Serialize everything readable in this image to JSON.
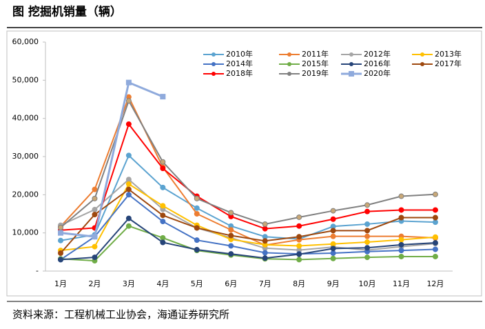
{
  "chart_data": {
    "type": "line",
    "title": "图   挖掘机销量（辆）",
    "source": "资料来源：工程机械工业协会，海通证券研究所",
    "categories": [
      "1月",
      "2月",
      "3月",
      "4月",
      "5月",
      "6月",
      "7月",
      "8月",
      "9月",
      "10月",
      "11月",
      "12月"
    ],
    "ylim": [
      0,
      60000
    ],
    "yticks": [
      {
        "value": 0,
        "label": "-"
      },
      {
        "value": 10000,
        "label": "10,000"
      },
      {
        "value": 20000,
        "label": "20,000"
      },
      {
        "value": 30000,
        "label": "30,000"
      },
      {
        "value": 40000,
        "label": "40,000"
      },
      {
        "value": 50000,
        "label": "50,000"
      },
      {
        "value": 60000,
        "label": "60,000"
      }
    ],
    "grid": false,
    "series": [
      {
        "name": "2010年",
        "color": "#5ba3d0",
        "values": [
          8000,
          9500,
          30300,
          21900,
          16500,
          11800,
          9000,
          8400,
          11700,
          12300,
          13100,
          12800
        ]
      },
      {
        "name": "2011年",
        "color": "#ed7d31",
        "values": [
          11700,
          21400,
          45600,
          27200,
          15000,
          10800,
          6800,
          8200,
          9100,
          9100,
          9100,
          8700
        ]
      },
      {
        "name": "2012年",
        "color": "#a5a5a5",
        "values": [
          12000,
          16100,
          24000,
          16200,
          11300,
          8700,
          6000,
          5500,
          6300,
          5500,
          6400,
          7200
        ]
      },
      {
        "name": "2013年",
        "color": "#ffc000",
        "values": [
          5400,
          6400,
          22800,
          17100,
          12000,
          8300,
          6900,
          6600,
          7100,
          7600,
          8200,
          8900
        ]
      },
      {
        "name": "2014年",
        "color": "#4472c4",
        "values": [
          3000,
          9000,
          20000,
          13000,
          8100,
          6600,
          4800,
          4500,
          4700,
          5100,
          5400,
          5700
        ]
      },
      {
        "name": "2015年",
        "color": "#70ad47",
        "values": [
          3200,
          2700,
          11800,
          8700,
          5400,
          4200,
          3200,
          3000,
          3300,
          3600,
          3800,
          3800
        ]
      },
      {
        "name": "2016年",
        "color": "#264478",
        "values": [
          3000,
          3600,
          13800,
          7500,
          5600,
          4500,
          3400,
          4400,
          5900,
          6100,
          6900,
          7400
        ]
      },
      {
        "name": "2017年",
        "color": "#9e480e",
        "values": [
          4700,
          14800,
          21400,
          14600,
          11300,
          9300,
          7900,
          9000,
          10600,
          10600,
          14000,
          14000
        ]
      },
      {
        "name": "2018年",
        "color": "#ff0000",
        "values": [
          10700,
          11300,
          38500,
          26900,
          19600,
          14300,
          11100,
          11800,
          13600,
          15600,
          16000,
          16000
        ]
      },
      {
        "name": "2019年",
        "color": "#808080",
        "values": [
          11400,
          19000,
          44600,
          28600,
          19000,
          15300,
          12300,
          14100,
          15800,
          17300,
          19600,
          20100
        ]
      },
      {
        "name": "2020年",
        "color": "#8faadc",
        "values": [
          10000,
          9000,
          49400,
          45700,
          null,
          null,
          null,
          null,
          null,
          null,
          null,
          null
        ]
      }
    ]
  }
}
